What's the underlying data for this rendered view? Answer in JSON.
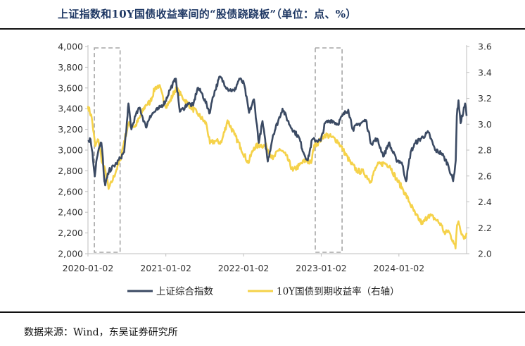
{
  "title": "上证指数和10Y国债收益率间的“股债跷跷板”（单位：点、%）",
  "source": "数据来源：Wind，东吴证券研究所",
  "colors": {
    "left_series": "#3b4a63",
    "right_series": "#f5d24a",
    "highlight_box": "#a6a6a6",
    "axis": "#bfbfbf"
  },
  "chart_data": {
    "type": "line",
    "x_ticks": [
      "2020-01-02",
      "2021-01-02",
      "2022-01-02",
      "2023-01-02",
      "2024-01-02"
    ],
    "x_range": [
      "2020-01-02",
      "2024-11-15"
    ],
    "y_left": {
      "ticks": [
        "2,000",
        "2,200",
        "2,400",
        "2,600",
        "2,800",
        "3,000",
        "3,200",
        "3,400",
        "3,600",
        "3,800",
        "4,000"
      ],
      "range": [
        2000,
        4000
      ]
    },
    "y_right": {
      "ticks": [
        "2.0",
        "2.2",
        "2.4",
        "2.6",
        "2.8",
        "3.0",
        "3.2",
        "3.4",
        "3.6"
      ],
      "range": [
        2.0,
        3.6
      ]
    },
    "legend": {
      "position": "bottom"
    },
    "highlight_periods": [
      [
        "2020-02-01",
        "2020-06-01"
      ],
      [
        "2022-12-05",
        "2023-04-10"
      ]
    ],
    "series": [
      {
        "name": "上证综合指数",
        "axis": "left",
        "points": [
          [
            "2020-01-02",
            3085
          ],
          [
            "2020-01-14",
            3105
          ],
          [
            "2020-01-23",
            2976
          ],
          [
            "2020-02-03",
            2746
          ],
          [
            "2020-02-10",
            2890
          ],
          [
            "2020-02-25",
            3030
          ],
          [
            "2020-03-05",
            3070
          ],
          [
            "2020-03-12",
            2920
          ],
          [
            "2020-03-19",
            2700
          ],
          [
            "2020-03-23",
            2660
          ],
          [
            "2020-04-10",
            2800
          ],
          [
            "2020-05-15",
            2870
          ],
          [
            "2020-06-01",
            2920
          ],
          [
            "2020-06-20",
            2980
          ],
          [
            "2020-07-06",
            3330
          ],
          [
            "2020-07-10",
            3450
          ],
          [
            "2020-07-24",
            3200
          ],
          [
            "2020-08-12",
            3330
          ],
          [
            "2020-09-01",
            3410
          ],
          [
            "2020-09-30",
            3220
          ],
          [
            "2020-10-20",
            3330
          ],
          [
            "2020-11-10",
            3370
          ],
          [
            "2020-11-30",
            3400
          ],
          [
            "2020-12-31",
            3470
          ],
          [
            "2021-01-20",
            3580
          ],
          [
            "2021-02-18",
            3690
          ],
          [
            "2021-03-09",
            3370
          ],
          [
            "2021-03-25",
            3400
          ],
          [
            "2021-04-15",
            3450
          ],
          [
            "2021-05-10",
            3430
          ],
          [
            "2021-05-31",
            3600
          ],
          [
            "2021-06-20",
            3550
          ],
          [
            "2021-07-28",
            3360
          ],
          [
            "2021-08-10",
            3510
          ],
          [
            "2021-09-13",
            3710
          ],
          [
            "2021-10-20",
            3590
          ],
          [
            "2021-11-20",
            3570
          ],
          [
            "2021-12-13",
            3690
          ],
          [
            "2022-01-04",
            3640
          ],
          [
            "2022-01-28",
            3360
          ],
          [
            "2022-02-20",
            3490
          ],
          [
            "2022-03-15",
            3070
          ],
          [
            "2022-04-01",
            3280
          ],
          [
            "2022-04-26",
            2890
          ],
          [
            "2022-05-20",
            3140
          ],
          [
            "2022-07-04",
            3400
          ],
          [
            "2022-08-10",
            3230
          ],
          [
            "2022-09-20",
            3120
          ],
          [
            "2022-10-10",
            2980
          ],
          [
            "2022-10-31",
            2900
          ],
          [
            "2022-11-20",
            3100
          ],
          [
            "2022-12-31",
            3090
          ],
          [
            "2023-01-20",
            3260
          ],
          [
            "2023-02-20",
            3290
          ],
          [
            "2023-03-20",
            3250
          ],
          [
            "2023-04-15",
            3340
          ],
          [
            "2023-05-09",
            3390
          ],
          [
            "2023-05-31",
            3200
          ],
          [
            "2023-06-20",
            3240
          ],
          [
            "2023-07-31",
            3290
          ],
          [
            "2023-08-25",
            3060
          ],
          [
            "2023-09-20",
            3110
          ],
          [
            "2023-10-23",
            2940
          ],
          [
            "2023-11-15",
            3070
          ],
          [
            "2023-12-20",
            2910
          ],
          [
            "2024-01-15",
            2880
          ],
          [
            "2024-02-05",
            2700
          ],
          [
            "2024-02-26",
            2980
          ],
          [
            "2024-03-20",
            3070
          ],
          [
            "2024-05-20",
            3170
          ],
          [
            "2024-06-20",
            3000
          ],
          [
            "2024-07-20",
            2970
          ],
          [
            "2024-08-20",
            2860
          ],
          [
            "2024-09-13",
            2700
          ],
          [
            "2024-09-25",
            2900
          ],
          [
            "2024-09-30",
            3330
          ],
          [
            "2024-10-08",
            3480
          ],
          [
            "2024-10-18",
            3260
          ],
          [
            "2024-11-08",
            3450
          ],
          [
            "2024-11-15",
            3330
          ]
        ]
      },
      {
        "name": "10Y国债到期收益率（右轴）",
        "axis": "right",
        "points": [
          [
            "2020-01-02",
            3.14
          ],
          [
            "2020-01-20",
            3.05
          ],
          [
            "2020-02-05",
            2.83
          ],
          [
            "2020-02-20",
            2.88
          ],
          [
            "2020-03-09",
            2.7
          ],
          [
            "2020-03-25",
            2.63
          ],
          [
            "2020-04-08",
            2.5
          ],
          [
            "2020-04-22",
            2.55
          ],
          [
            "2020-05-15",
            2.65
          ],
          [
            "2020-06-01",
            2.72
          ],
          [
            "2020-06-20",
            2.87
          ],
          [
            "2020-07-10",
            3.0
          ],
          [
            "2020-08-10",
            2.98
          ],
          [
            "2020-09-01",
            3.05
          ],
          [
            "2020-09-30",
            3.15
          ],
          [
            "2020-10-20",
            3.17
          ],
          [
            "2020-11-12",
            3.28
          ],
          [
            "2020-12-01",
            3.3
          ],
          [
            "2020-12-31",
            3.14
          ],
          [
            "2021-01-20",
            3.17
          ],
          [
            "2021-02-18",
            3.28
          ],
          [
            "2021-03-20",
            3.21
          ],
          [
            "2021-04-20",
            3.15
          ],
          [
            "2021-06-01",
            3.08
          ],
          [
            "2021-07-12",
            3.0
          ],
          [
            "2021-07-28",
            2.85
          ],
          [
            "2021-08-20",
            2.87
          ],
          [
            "2021-09-20",
            2.86
          ],
          [
            "2021-10-19",
            3.03
          ],
          [
            "2021-11-20",
            2.92
          ],
          [
            "2021-12-20",
            2.82
          ],
          [
            "2022-01-24",
            2.7
          ],
          [
            "2022-02-20",
            2.82
          ],
          [
            "2022-03-20",
            2.84
          ],
          [
            "2022-04-20",
            2.83
          ],
          [
            "2022-05-20",
            2.73
          ],
          [
            "2022-06-20",
            2.81
          ],
          [
            "2022-07-20",
            2.76
          ],
          [
            "2022-08-22",
            2.64
          ],
          [
            "2022-09-20",
            2.68
          ],
          [
            "2022-10-20",
            2.72
          ],
          [
            "2022-11-16",
            2.7
          ],
          [
            "2022-11-30",
            2.84
          ],
          [
            "2022-12-20",
            2.86
          ],
          [
            "2023-01-20",
            2.92
          ],
          [
            "2023-02-20",
            2.9
          ],
          [
            "2023-03-20",
            2.87
          ],
          [
            "2023-04-15",
            2.8
          ],
          [
            "2023-05-20",
            2.7
          ],
          [
            "2023-06-20",
            2.64
          ],
          [
            "2023-07-20",
            2.63
          ],
          [
            "2023-08-22",
            2.56
          ],
          [
            "2023-09-20",
            2.68
          ],
          [
            "2023-10-25",
            2.7
          ],
          [
            "2023-11-20",
            2.68
          ],
          [
            "2023-12-20",
            2.58
          ],
          [
            "2024-01-20",
            2.5
          ],
          [
            "2024-02-20",
            2.4
          ],
          [
            "2024-03-20",
            2.3
          ],
          [
            "2024-04-22",
            2.23
          ],
          [
            "2024-05-20",
            2.3
          ],
          [
            "2024-06-20",
            2.27
          ],
          [
            "2024-07-20",
            2.22
          ],
          [
            "2024-08-05",
            2.15
          ],
          [
            "2024-08-20",
            2.18
          ],
          [
            "2024-09-13",
            2.1
          ],
          [
            "2024-09-24",
            2.04
          ],
          [
            "2024-10-01",
            2.22
          ],
          [
            "2024-10-08",
            2.25
          ],
          [
            "2024-10-25",
            2.15
          ],
          [
            "2024-11-08",
            2.12
          ],
          [
            "2024-11-15",
            2.16
          ]
        ]
      }
    ]
  }
}
